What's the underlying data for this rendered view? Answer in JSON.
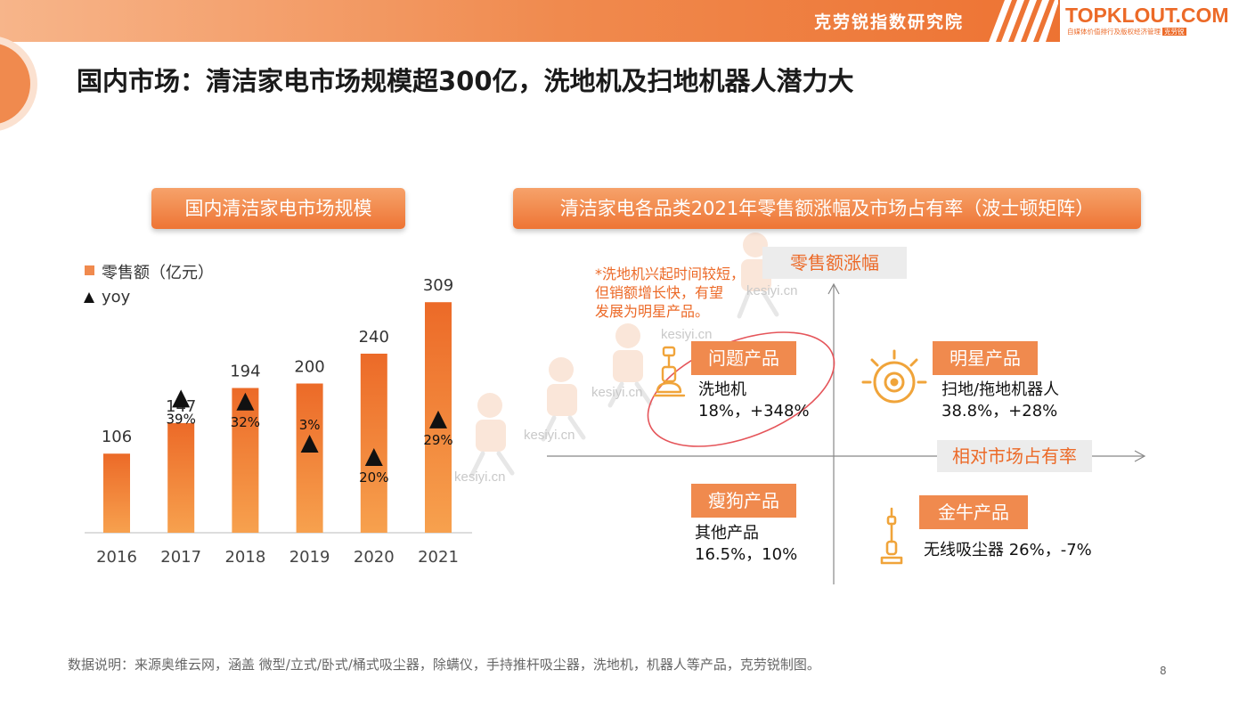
{
  "header": {
    "brand_cn": "克劳锐指数研究院",
    "logo_main": "TOPKLOUT.COM",
    "logo_sub": "自媒体价值排行及版权经济管理",
    "logo_sub_tag": "克劳锐"
  },
  "page_title": "国内市场：清洁家电市场规模超300亿，洗地机及扫地机器人潜力大",
  "left_panel": {
    "title": "国内清洁家电市场规模",
    "legend_bar": "零售额（亿元）",
    "legend_yoy": "yoy"
  },
  "right_panel": {
    "title": "清洁家电各品类2021年零售额涨幅及市场占有率（波士顿矩阵）",
    "y_axis_label": "零售额涨幅",
    "x_axis_label": "相对市场占有率",
    "note_lines": [
      "*洗地机兴起时间较短，",
      "但销额增长快，有望",
      "发展为明星产品。"
    ],
    "quadrants": [
      {
        "label": "问题产品",
        "product": "洗地机",
        "value": "18%，+348%",
        "icon": "floor-washer-icon"
      },
      {
        "label": "明星产品",
        "product": "扫地/拖地机器人",
        "value": "38.8%，+28%",
        "icon": "robot-vacuum-icon"
      },
      {
        "label": "瘦狗产品",
        "product": "其他产品",
        "value": "16.5%，10%",
        "icon": ""
      },
      {
        "label": "金牛产品",
        "product": "无线吸尘器 26%，-7%",
        "value": "",
        "icon": "stick-vacuum-icon"
      }
    ]
  },
  "watermark": "kesiyi.cn",
  "footer": {
    "note": "数据说明：来源奥维云网，涵盖 微型/立式/卧式/桶式吸尘器，除螨仪，手持推杆吸尘器，洗地机，机器人等产品，克劳锐制图。",
    "page": "8"
  },
  "colors": {
    "accent": "#ec6a28",
    "bar_top": "#ec6a28",
    "bar_bottom": "#f7a14e",
    "marker": "#111111"
  },
  "chart_data": [
    {
      "type": "bar",
      "title": "国内清洁家电市场规模",
      "categories": [
        "2016",
        "2017",
        "2018",
        "2019",
        "2020",
        "2021"
      ],
      "series": [
        {
          "name": "零售额（亿元）",
          "values": [
            106,
            147,
            194,
            200,
            240,
            309
          ]
        },
        {
          "name": "yoy",
          "values": [
            null,
            39,
            32,
            3,
            20,
            29
          ],
          "labels": [
            "",
            "39%",
            "32%",
            "3%",
            "20%",
            "29%"
          ]
        }
      ],
      "ylim": [
        0,
        320
      ],
      "legend": "top-left"
    },
    {
      "type": "scatter",
      "title": "清洁家电各品类2021年零售额涨幅及市场占有率（波士顿矩阵）",
      "xlabel": "相对市场占有率",
      "ylabel": "零售额涨幅",
      "points": [
        {
          "name": "洗地机",
          "share": "18%",
          "growth": "+348%",
          "quadrant": "问题产品"
        },
        {
          "name": "扫地/拖地机器人",
          "share": "38.8%",
          "growth": "+28%",
          "quadrant": "明星产品"
        },
        {
          "name": "其他产品",
          "share": "16.5%",
          "growth": "10%",
          "quadrant": "瘦狗产品"
        },
        {
          "name": "无线吸尘器",
          "share": "26%",
          "growth": "-7%",
          "quadrant": "金牛产品"
        }
      ]
    }
  ]
}
